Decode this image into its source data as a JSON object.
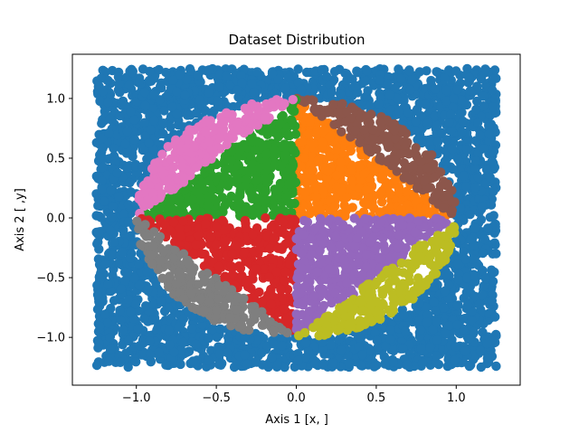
{
  "chart_data": {
    "type": "scatter",
    "title": "Dataset Distribution",
    "xlabel": "Axis 1 [x, ]",
    "ylabel": "Axis 2 [ ,y]",
    "xlim": [
      -1.4,
      1.4
    ],
    "ylim": [
      -1.4,
      1.37
    ],
    "xticks": [
      -1.0,
      -0.5,
      0.0,
      0.5,
      1.0
    ],
    "xtick_labels": [
      "−1.0",
      "−0.5",
      "0.0",
      "0.5",
      "1.0"
    ],
    "yticks": [
      -1.0,
      -0.5,
      0.0,
      0.5,
      1.0
    ],
    "ytick_labels": [
      "−1.0",
      "−0.5",
      "0.0",
      "0.5",
      "1.0"
    ],
    "grid": false,
    "legend": "none",
    "series": [
      {
        "color": "#1f77b4",
        "region": "outside unit circle",
        "x_range": [
          -1.25,
          1.25
        ],
        "y_range": [
          -1.25,
          1.25
        ]
      },
      {
        "color": "#ff7f0e",
        "region": "inside circle, angle 0°–90° (inner)",
        "angle_range_deg": [
          0,
          90
        ]
      },
      {
        "color": "#8c564b",
        "region": "inside circle, angle 0°–90° (outer arc)",
        "angle_range_deg": [
          0,
          90
        ]
      },
      {
        "color": "#2ca02c",
        "region": "inside circle, angle 90°–180° (inner)",
        "angle_range_deg": [
          90,
          180
        ]
      },
      {
        "color": "#e377c2",
        "region": "inside circle, angle 90°–180° (outer arc)",
        "angle_range_deg": [
          90,
          180
        ]
      },
      {
        "color": "#d62728",
        "region": "inside circle, angle 180°–270° (inner)",
        "angle_range_deg": [
          180,
          270
        ]
      },
      {
        "color": "#7f7f7f",
        "region": "inside circle, angle 180°–270° (outer arc)",
        "angle_range_deg": [
          180,
          270
        ]
      },
      {
        "color": "#9467bd",
        "region": "inside circle, angle 270°–360° (inner)",
        "angle_range_deg": [
          270,
          360
        ]
      },
      {
        "color": "#bcbd22",
        "region": "inside circle, angle 270°–360° (outer arc)",
        "angle_range_deg": [
          270,
          360
        ]
      }
    ]
  }
}
